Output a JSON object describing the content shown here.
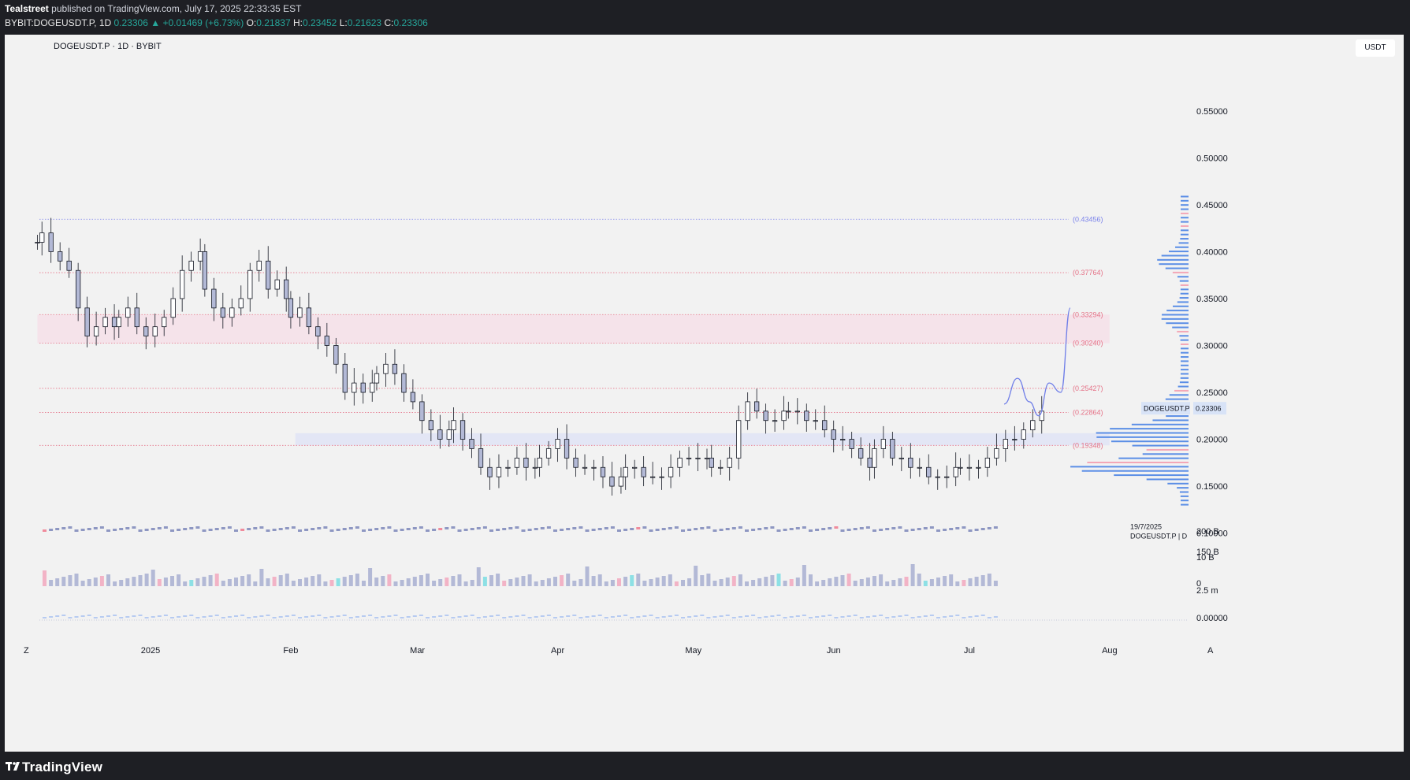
{
  "header": {
    "publisher": "Tealstreet",
    "published_text": "published on TradingView.com, July 17, 2025 22:33:35 EST",
    "symbol_full": "BYBIT:DOGEUSDT.P, 1D",
    "last": "0.23306",
    "change": "+0.01469 (+6.73%)",
    "o_label": "O:",
    "o_value": "0.21837",
    "h_label": "H:",
    "h_value": "0.23452",
    "l_label": "L:",
    "l_value": "0.21623",
    "c_label": "C:",
    "c_value": "0.23306"
  },
  "chart_title": "DOGEUSDT.P · 1D · BYBIT",
  "currency_button": "USDT",
  "footer": {
    "brand": "TradingView"
  },
  "colors": {
    "up": "#26a69a",
    "candle_fill": "#b3b9d6",
    "candle_stroke": "#131722",
    "resistance_zone": "#f5e3ea",
    "support_zone": "#e3e6f5",
    "projection": "#6f7ee8",
    "profile": "#5b8ee6",
    "last_price_bg": "#d8e3f7"
  },
  "chart_data": {
    "type": "candlestick",
    "title": "DOGEUSDT.P · 1D · BYBIT",
    "yaxis": {
      "ticks": [
        "0.55000",
        "0.50000",
        "0.45000",
        "0.40000",
        "0.35000",
        "0.30000",
        "0.25000",
        "0.20000",
        "0.15000",
        "0.10000"
      ],
      "range": [
        0.08,
        0.58
      ]
    },
    "xaxis": {
      "ticks": [
        "2025",
        "Feb",
        "Mar",
        "Apr",
        "May",
        "Jun",
        "Jul",
        "Aug"
      ],
      "range": [
        "2024-12-05",
        "2025-08-20"
      ]
    },
    "levels": [
      {
        "label": "(0.43456)",
        "value": 0.43456,
        "color": "#7b83eb"
      },
      {
        "label": "(0.37764)",
        "value": 0.37764,
        "color": "#e57388"
      },
      {
        "label": "(0.33294)",
        "value": 0.33294,
        "color": "#e57388"
      },
      {
        "label": "(0.30240)",
        "value": 0.3024,
        "color": "#e57388"
      },
      {
        "label": "(0.25427)",
        "value": 0.25427,
        "color": "#e57388"
      },
      {
        "label": "(0.22864)",
        "value": 0.22864,
        "color": "#e57388"
      },
      {
        "label": "(0.19348)",
        "value": 0.19348,
        "color": "#e57388"
      }
    ],
    "zones": [
      {
        "name": "resistance",
        "from": 0.3024,
        "to": 0.33294,
        "start": "2024-12-07",
        "end": "2025-08-01"
      },
      {
        "name": "support",
        "from": 0.19348,
        "to": 0.2065,
        "start": "2025-02-02",
        "end": "2025-08-01"
      }
    ],
    "last_price": {
      "symbol": "DOGEUSDT.P",
      "value": "0.23306"
    },
    "projection_note": {
      "date": "19/7/2025",
      "symbol": "DOGEUSDT.P | D"
    },
    "candles_closes": [
      0.41,
      0.42,
      0.4,
      0.39,
      0.38,
      0.34,
      0.31,
      0.32,
      0.33,
      0.32,
      0.33,
      0.34,
      0.32,
      0.31,
      0.32,
      0.33,
      0.35,
      0.38,
      0.39,
      0.4,
      0.36,
      0.34,
      0.33,
      0.34,
      0.35,
      0.38,
      0.39,
      0.36,
      0.37,
      0.35,
      0.33,
      0.34,
      0.32,
      0.31,
      0.3,
      0.28,
      0.25,
      0.26,
      0.25,
      0.26,
      0.27,
      0.28,
      0.27,
      0.25,
      0.24,
      0.22,
      0.21,
      0.2,
      0.21,
      0.22,
      0.2,
      0.19,
      0.17,
      0.16,
      0.17,
      0.17,
      0.18,
      0.17,
      0.17,
      0.18,
      0.19,
      0.2,
      0.18,
      0.17,
      0.17,
      0.17,
      0.16,
      0.15,
      0.16,
      0.17,
      0.17,
      0.16,
      0.16,
      0.16,
      0.17,
      0.18,
      0.18,
      0.18,
      0.18,
      0.17,
      0.17,
      0.18,
      0.22,
      0.24,
      0.23,
      0.22,
      0.22,
      0.23,
      0.23,
      0.23,
      0.22,
      0.22,
      0.21,
      0.2,
      0.2,
      0.19,
      0.18,
      0.17,
      0.19,
      0.2,
      0.18,
      0.18,
      0.17,
      0.17,
      0.16,
      0.16,
      0.16,
      0.17,
      0.17,
      0.17,
      0.17,
      0.18,
      0.19,
      0.2,
      0.2,
      0.21,
      0.22,
      0.23
    ]
  },
  "footer_axis": {
    "left_marker": "Z",
    "right_marker": "A"
  },
  "indicator_ticks": [
    "200 B",
    "150 B",
    "10 B",
    "0",
    "2.5 m",
    "0.00000"
  ]
}
